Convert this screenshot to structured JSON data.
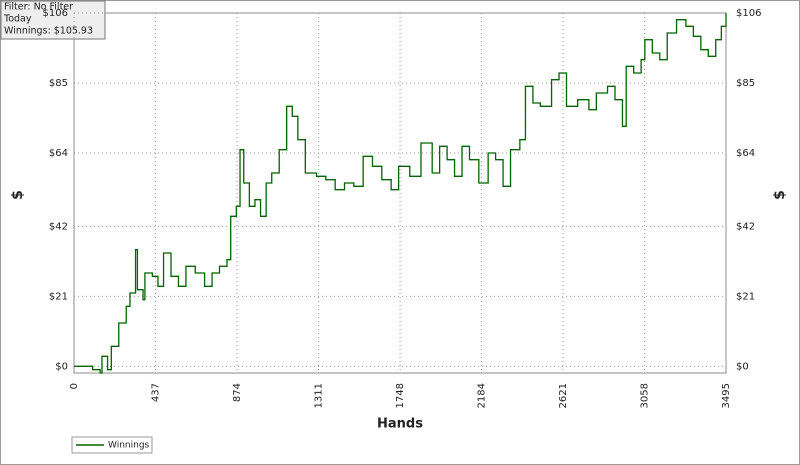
{
  "chart_data": {
    "type": "line",
    "info": [
      "Filter: No Filter",
      "Today",
      "Winnings: $105.93"
    ],
    "x_label": "Hands",
    "y_label": "$",
    "y2_label": "$",
    "x": [
      0,
      100,
      140,
      150,
      180,
      200,
      240,
      280,
      300,
      330,
      340,
      370,
      380,
      420,
      450,
      480,
      520,
      560,
      600,
      650,
      700,
      740,
      780,
      820,
      840,
      870,
      890,
      910,
      940,
      970,
      1000,
      1030,
      1060,
      1100,
      1140,
      1170,
      1200,
      1240,
      1300,
      1350,
      1400,
      1450,
      1500,
      1550,
      1600,
      1650,
      1700,
      1740,
      1800,
      1860,
      1920,
      1960,
      2000,
      2040,
      2080,
      2120,
      2170,
      2220,
      2260,
      2300,
      2340,
      2390,
      2420,
      2460,
      2500,
      2560,
      2600,
      2640,
      2700,
      2760,
      2800,
      2860,
      2900,
      2940,
      2960,
      3000,
      3040,
      3060,
      3100,
      3140,
      3180,
      3230,
      3280,
      3320,
      3360,
      3400,
      3440,
      3470,
      3495
    ],
    "series": [
      {
        "name": "Winnings",
        "color": "#006400",
        "values": [
          0,
          -1,
          -2,
          3,
          -1,
          6,
          13,
          18,
          22,
          35,
          23,
          20,
          28,
          27,
          24,
          34,
          27,
          24,
          30,
          28,
          24,
          28,
          30,
          32,
          45,
          48,
          65,
          55,
          48,
          50,
          45,
          55,
          58,
          65,
          78,
          75,
          68,
          58,
          57,
          56,
          53,
          55,
          54,
          63,
          60,
          56,
          53,
          60,
          57,
          67,
          58,
          66,
          62,
          57,
          66,
          62,
          55,
          64,
          62,
          54,
          65,
          68,
          84,
          79,
          78,
          86,
          88,
          78,
          80,
          77,
          82,
          84,
          80,
          72,
          90,
          88,
          92,
          98,
          94,
          92,
          100,
          104,
          102,
          99,
          95,
          93,
          98,
          102,
          105.93
        ]
      }
    ],
    "xlim": [
      0,
      3495
    ],
    "xticks": [
      0,
      437,
      874,
      1311,
      1748,
      2184,
      2621,
      3058,
      3495
    ],
    "ylim": [
      -2,
      106
    ],
    "yticks": [
      {
        "value": 0,
        "label": "$0"
      },
      {
        "value": 21,
        "label": "$21"
      },
      {
        "value": 42,
        "label": "$42"
      },
      {
        "value": 64,
        "label": "$64"
      },
      {
        "value": 85,
        "label": "$85"
      },
      {
        "value": 106,
        "label": "$106"
      }
    ],
    "grid": true
  }
}
